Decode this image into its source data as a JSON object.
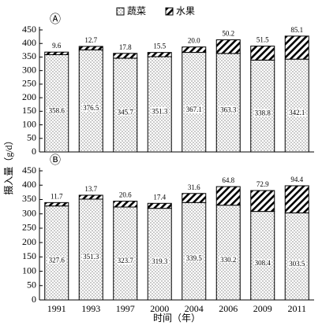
{
  "chart_data": [
    {
      "type": "stacked-bar",
      "panel_label": "Ⓐ",
      "ylabel": "摄入量（g/d）",
      "ylim": [
        0,
        450
      ],
      "yticks": [
        0,
        50,
        100,
        150,
        200,
        250,
        300,
        350,
        400,
        450
      ],
      "series": [
        {
          "name": "蔬菜",
          "color": "#000000",
          "pattern": "dots",
          "values": [
            358.6,
            376.5,
            345.7,
            351.3,
            367.1,
            363.3,
            338.8,
            342.1
          ],
          "value_labels": [
            "358.6",
            "376.5",
            "345.7",
            "351.3",
            "367.1",
            "363.3",
            "338.8",
            "342.1"
          ]
        },
        {
          "name": "水果",
          "color": "#000000",
          "pattern": "hatch",
          "values": [
            9.6,
            12.7,
            17.8,
            15.5,
            20.0,
            50.2,
            51.5,
            85.1
          ],
          "value_labels": [
            "9.6",
            "12.7",
            "17.8",
            "15.5",
            "20.0",
            "50.2",
            "51.5",
            "85.1"
          ]
        }
      ]
    },
    {
      "type": "stacked-bar",
      "panel_label": "Ⓑ",
      "xlabel": "时间（年）",
      "categories": [
        "1991",
        "1993",
        "1997",
        "2000",
        "2004",
        "2006",
        "2009",
        "2011"
      ],
      "ylim": [
        0,
        450
      ],
      "yticks": [
        0,
        50,
        100,
        150,
        200,
        250,
        300,
        350,
        400,
        450
      ],
      "series": [
        {
          "color": "#000000",
          "pattern": "dots",
          "values": [
            327.6,
            351.3,
            323.7,
            319.3,
            339.5,
            330.2,
            308.4,
            303.5
          ],
          "value_labels": [
            "327.6",
            "351.3",
            "323.7",
            "319.3",
            "339.5",
            "330.2",
            "308.4",
            "303.5"
          ]
        },
        {
          "color": "#000000",
          "pattern": "hatch",
          "values": [
            11.7,
            13.7,
            20.6,
            17.4,
            31.6,
            64.8,
            72.9,
            94.4
          ],
          "value_labels": [
            "11.7",
            "13.7",
            "20.6",
            "17.4",
            "31.6",
            "64.8",
            "72.9",
            "94.4"
          ]
        }
      ]
    }
  ]
}
